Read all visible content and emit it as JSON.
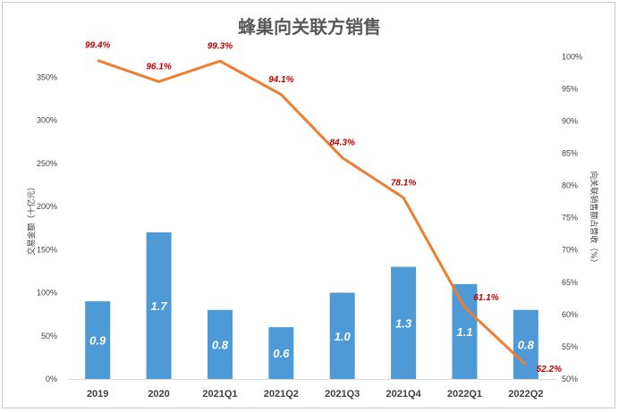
{
  "chart_data": {
    "type": "bar+line",
    "title": "蜂巢向关联方销售",
    "categories": [
      "2019",
      "2020",
      "2021Q1",
      "2021Q2",
      "2021Q3",
      "2021Q4",
      "2022Q1",
      "2022Q2"
    ],
    "series": [
      {
        "type": "bar",
        "axis": "left",
        "values": [
          0.9,
          1.7,
          0.8,
          0.6,
          1.0,
          1.3,
          1.1,
          0.8
        ],
        "data_labels": [
          "0.9",
          "1.7",
          "0.8",
          "0.6",
          "1.0",
          "1.3",
          "1.1",
          "0.8"
        ],
        "color": "#4e9ad6"
      },
      {
        "type": "line",
        "axis": "right",
        "values": [
          99.4,
          96.1,
          99.3,
          94.1,
          84.3,
          78.1,
          61.1,
          52.2
        ],
        "data_labels": [
          "99.4%",
          "96.1%",
          "99.3%",
          "94.1%",
          "84.3%",
          "78.1%",
          "61.1%",
          "52.2%"
        ],
        "color": "#ed7d31",
        "label_color": "#c00000"
      }
    ],
    "left_axis": {
      "label": "交易金额（十亿元）",
      "ticks": [
        0,
        50,
        100,
        150,
        200,
        250,
        300,
        350
      ],
      "tick_labels": [
        "0%",
        "50%",
        "100%",
        "150%",
        "200%",
        "250%",
        "300%",
        "350%"
      ],
      "range": [
        0,
        400
      ],
      "bar_scale_per_unit": 100
    },
    "right_axis": {
      "label": "向关联销售额占营收（%）",
      "ticks": [
        50,
        55,
        60,
        65,
        70,
        75,
        80,
        85,
        90,
        95,
        100
      ],
      "tick_labels": [
        "50%",
        "55%",
        "60%",
        "65%",
        "70%",
        "75%",
        "80%",
        "85%",
        "90%",
        "95%",
        "100%"
      ],
      "range": [
        50,
        103.5
      ]
    },
    "grid": false,
    "legend": "none"
  }
}
